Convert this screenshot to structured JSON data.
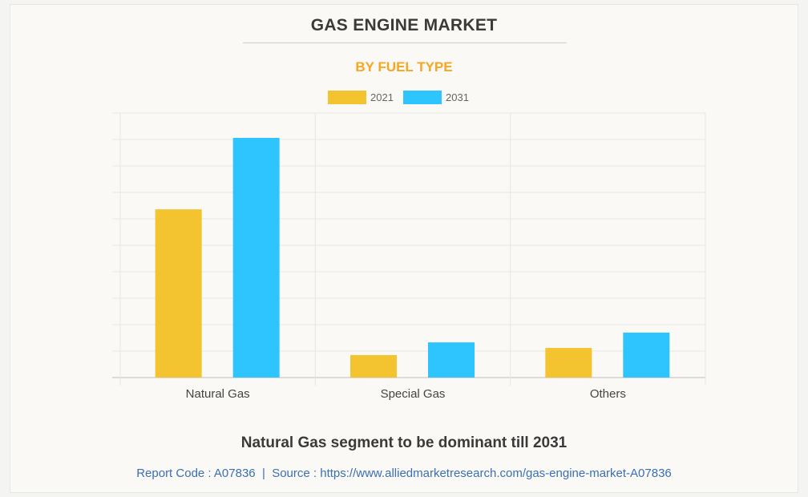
{
  "chart_data": {
    "type": "bar",
    "title": "GAS ENGINE MARKET",
    "subtitle": "BY FUEL TYPE",
    "categories": [
      "Natural Gas",
      "Special Gas",
      "Others"
    ],
    "series": [
      {
        "name": "2021",
        "color": "#f4c430",
        "values": [
          6.36,
          0.85,
          1.12
        ]
      },
      {
        "name": "2031",
        "color": "#2ec4fd",
        "values": [
          9.06,
          1.33,
          1.7
        ]
      }
    ],
    "xlabel": "",
    "ylabel": "",
    "ylim": [
      0,
      10
    ],
    "grid": true,
    "legend": "top-center"
  },
  "caption": "Natural Gas segment to be dominant till 2031",
  "source_line": "Report Code : A07836  |  Source : https://www.alliedmarketresearch.com/gas-engine-market-A07836"
}
